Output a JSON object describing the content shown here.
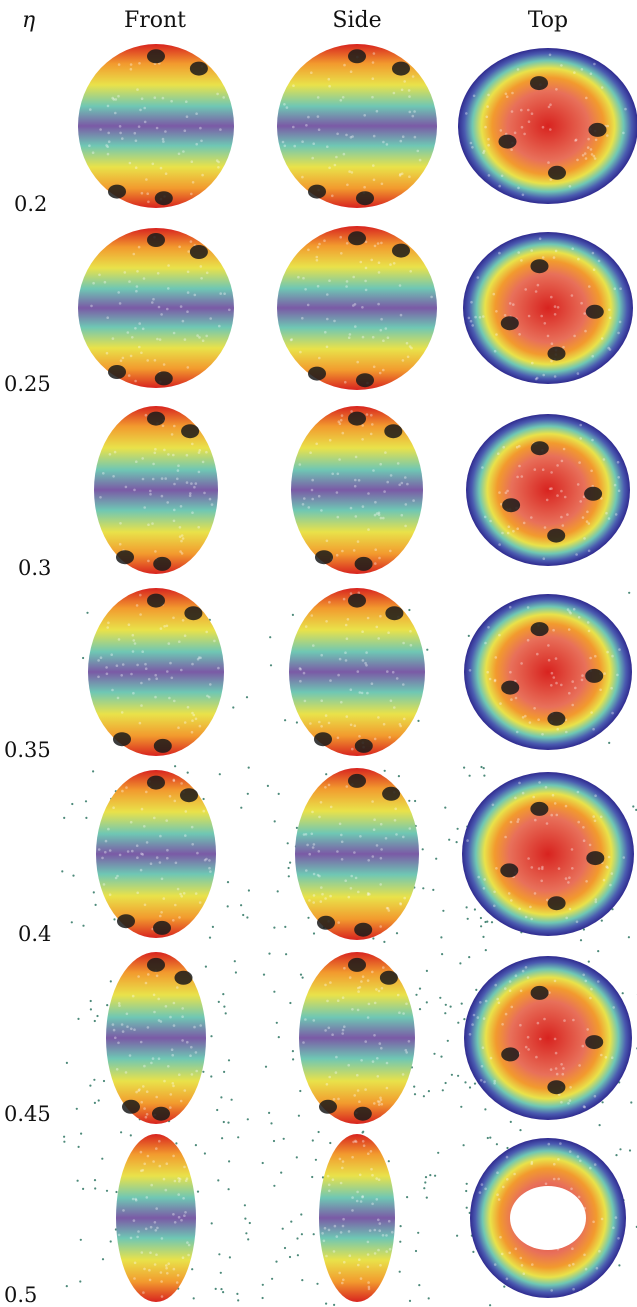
{
  "header": {
    "eta_symbol": "η",
    "columns": [
      "Front",
      "Side",
      "Top"
    ]
  },
  "rows": [
    {
      "eta": "0.2"
    },
    {
      "eta": "0.25"
    },
    {
      "eta": "0.3"
    },
    {
      "eta": "0.35"
    },
    {
      "eta": "0.4"
    },
    {
      "eta": "0.45"
    },
    {
      "eta": "0.5"
    }
  ],
  "colors": {
    "pole": "#d8231f",
    "orange": "#f29a2e",
    "yellow": "#e9e24a",
    "teal": "#6fc7b4",
    "purple": "#7a5aa6",
    "deep_blue": "#2f2a8f",
    "defect": "#1a1a1a",
    "particle": "#4d8a7a"
  }
}
